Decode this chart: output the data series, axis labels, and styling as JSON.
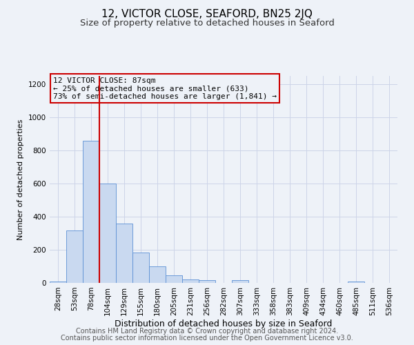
{
  "title": "12, VICTOR CLOSE, SEAFORD, BN25 2JQ",
  "subtitle": "Size of property relative to detached houses in Seaford",
  "xlabel": "Distribution of detached houses by size in Seaford",
  "ylabel": "Number of detached properties",
  "footer_lines": [
    "Contains HM Land Registry data © Crown copyright and database right 2024.",
    "Contains public sector information licensed under the Open Government Licence v3.0."
  ],
  "bin_labels": [
    "28sqm",
    "53sqm",
    "78sqm",
    "104sqm",
    "129sqm",
    "155sqm",
    "180sqm",
    "205sqm",
    "231sqm",
    "256sqm",
    "282sqm",
    "307sqm",
    "333sqm",
    "358sqm",
    "383sqm",
    "409sqm",
    "434sqm",
    "460sqm",
    "485sqm",
    "511sqm",
    "536sqm"
  ],
  "bar_values": [
    10,
    315,
    860,
    600,
    360,
    185,
    100,
    47,
    20,
    17,
    0,
    17,
    0,
    0,
    0,
    0,
    0,
    0,
    8,
    0,
    0
  ],
  "bar_color": "#c9d9f0",
  "bar_edge_color": "#5b8fd4",
  "vline_x_idx": 2,
  "vline_color": "#cc0000",
  "annotation_line1": "12 VICTOR CLOSE: 87sqm",
  "annotation_line2": "← 25% of detached houses are smaller (633)",
  "annotation_line3": "73% of semi-detached houses are larger (1,841) →",
  "annotation_box_color": "#cc0000",
  "ylim": [
    0,
    1250
  ],
  "yticks": [
    0,
    200,
    400,
    600,
    800,
    1000,
    1200
  ],
  "grid_color": "#ccd4e8",
  "bg_color": "#eef2f8",
  "title_fontsize": 11,
  "subtitle_fontsize": 9.5,
  "xlabel_fontsize": 9,
  "ylabel_fontsize": 8,
  "tick_fontsize": 7.5,
  "annotation_fontsize": 8,
  "footer_fontsize": 7
}
